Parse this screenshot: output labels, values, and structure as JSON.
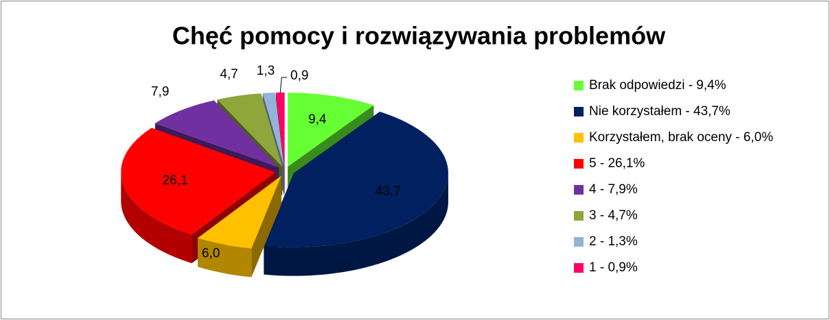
{
  "chart_data": {
    "type": "pie",
    "title": "Chęć pomocy i rozwiązywania problemów",
    "categories": [
      "Brak odpowiedzi - 9,4%",
      "Nie korzystałem - 43,7%",
      "Korzystałem, brak oceny - 6,0%",
      "5 - 26,1%",
      "4 - 7,9%",
      "3 - 4,7%",
      "2 - 1,3%",
      "1 - 0,9%"
    ],
    "values": [
      9.4,
      43.7,
      6.0,
      26.1,
      7.9,
      4.7,
      1.3,
      0.9
    ],
    "value_labels": [
      "9,4",
      "43,7",
      "6,0",
      "26,1",
      "7,9",
      "4,7",
      "1,3",
      "0,9"
    ],
    "colors": [
      "#66ff33",
      "#002060",
      "#ffc000",
      "#ff0000",
      "#7030a0",
      "#8ea63a",
      "#95b3d7",
      "#ff0066"
    ],
    "legend": "right"
  }
}
